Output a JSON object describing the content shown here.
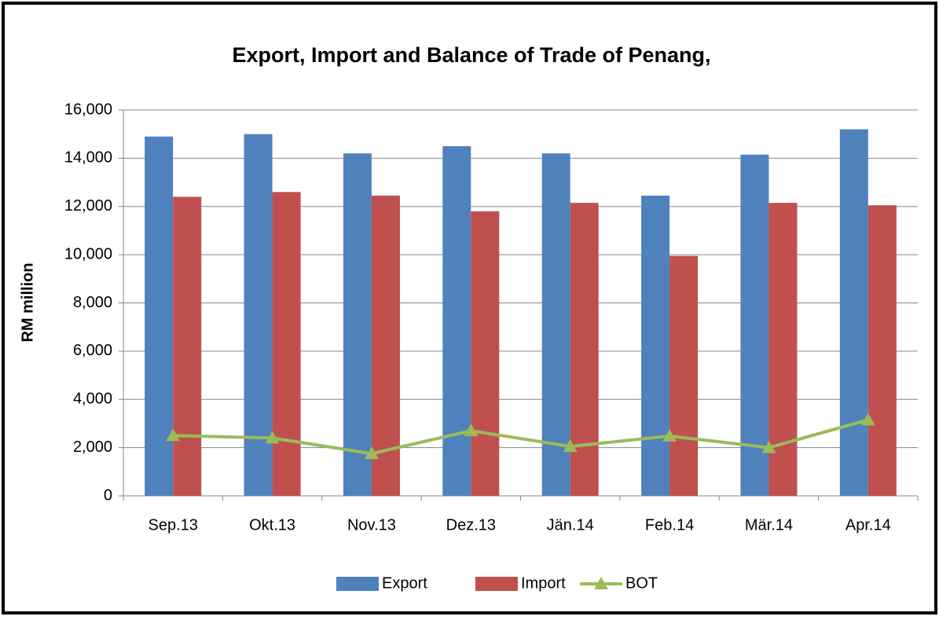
{
  "chart_data": {
    "type": "bar",
    "title": "Export, Import and Balance of Trade of Penang,",
    "y_label": "RM million",
    "categories": [
      "Sep.13",
      "Okt.13",
      "Nov.13",
      "Dez.13",
      "Jän.14",
      "Feb.14",
      "Mär.14",
      "Apr.14"
    ],
    "series": [
      {
        "name": "Export",
        "type": "bar",
        "color": "#4f81bd",
        "values": [
          14900,
          15000,
          14200,
          14500,
          14200,
          12450,
          14150,
          15200
        ]
      },
      {
        "name": "Import",
        "type": "bar",
        "color": "#c0504d",
        "values": [
          12400,
          12600,
          12450,
          11800,
          12150,
          9950,
          12150,
          12050
        ]
      },
      {
        "name": "BOT",
        "type": "line",
        "color": "#9bbb59",
        "values": [
          2500,
          2400,
          1750,
          2700,
          2050,
          2480,
          2000,
          3150
        ]
      }
    ],
    "ylim": [
      0,
      16000
    ],
    "yticks": [
      0,
      {
        "value": 2000,
        "label": "2,000"
      },
      {
        "value": 4000,
        "label": "4,000"
      },
      {
        "value": 6000,
        "label": "6,000"
      },
      {
        "value": 8000,
        "label": "8,000"
      },
      {
        "value": 10000,
        "label": "10,000"
      },
      {
        "value": 12000,
        "label": "12,000"
      },
      {
        "value": 14000,
        "label": "14,000"
      },
      {
        "value": 16000,
        "label": "16,000"
      }
    ],
    "grid": true,
    "legend": "bottom"
  }
}
